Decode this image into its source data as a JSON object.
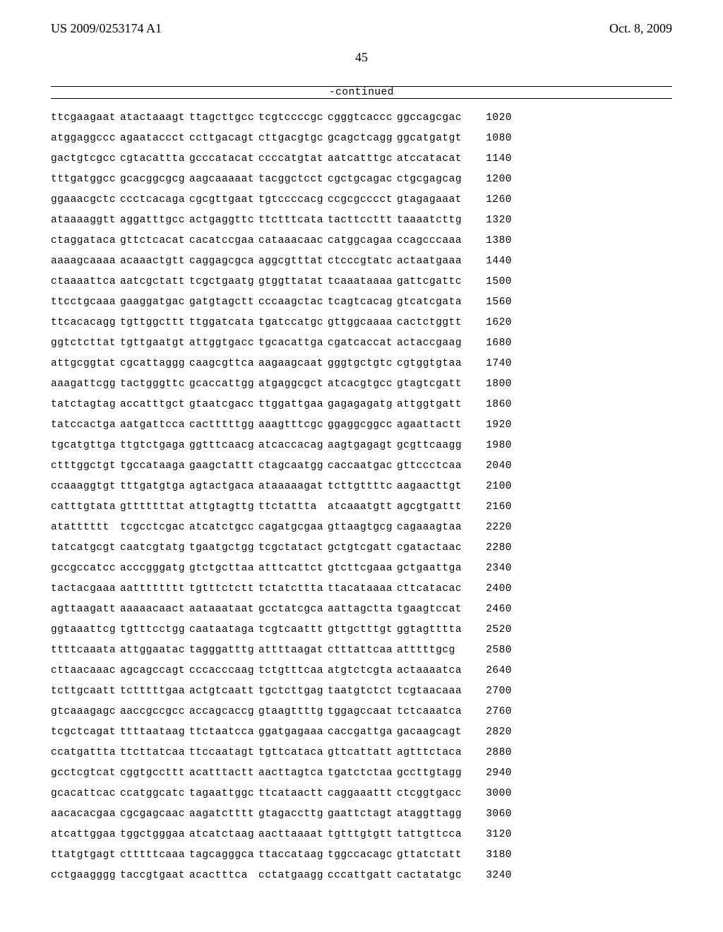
{
  "header": {
    "left": "US 2009/0253174 A1",
    "right": "Oct. 8, 2009"
  },
  "page_number": "45",
  "continued_label": "-continued",
  "sequence": {
    "rows": [
      {
        "groups": [
          "ttcgaagaat",
          "atactaaagt",
          "ttagcttgcc",
          "tcgtccccgc",
          "cgggtcaccc",
          "ggccagcgac"
        ],
        "pos": "1020"
      },
      {
        "groups": [
          "atggaggccc",
          "agaataccct",
          "ccttgacagt",
          "cttgacgtgc",
          "gcagctcagg",
          "ggcatgatgt"
        ],
        "pos": "1080"
      },
      {
        "groups": [
          "gactgtcgcc",
          "cgtacattta",
          "gcccatacat",
          "ccccatgtat",
          "aatcatttgc",
          "atccatacat"
        ],
        "pos": "1140"
      },
      {
        "groups": [
          "tttgatggcc",
          "gcacggcgcg",
          "aagcaaaaat",
          "tacggctcct",
          "cgctgcagac",
          "ctgcgagcag"
        ],
        "pos": "1200"
      },
      {
        "groups": [
          "ggaaacgctc",
          "ccctcacaga",
          "cgcgttgaat",
          "tgtccccacg",
          "ccgcgcccct",
          "gtagagaaat"
        ],
        "pos": "1260"
      },
      {
        "groups": [
          "ataaaaggtt",
          "aggatttgcc",
          "actgaggttc",
          "ttctttcata",
          "tacttccttt",
          "taaaatcttg"
        ],
        "pos": "1320"
      },
      {
        "groups": [
          "ctaggataca",
          "gttctcacat",
          "cacatccgaa",
          "cataaacaac",
          "catggcagaa",
          "ccagcccaaa"
        ],
        "pos": "1380"
      },
      {
        "groups": [
          "aaaagcaaaa",
          "acaaactgtt",
          "caggagcgca",
          "aggcgtttat",
          "ctcccgtatc",
          "actaatgaaa"
        ],
        "pos": "1440"
      },
      {
        "groups": [
          "ctaaaattca",
          "aatcgctatt",
          "tcgctgaatg",
          "gtggttatat",
          "tcaaataaaa",
          "gattcgattc"
        ],
        "pos": "1500"
      },
      {
        "groups": [
          "ttcctgcaaa",
          "gaaggatgac",
          "gatgtagctt",
          "cccaagctac",
          "tcagtcacag",
          "gtcatcgata"
        ],
        "pos": "1560"
      },
      {
        "groups": [
          "ttcacacagg",
          "tgttggcttt",
          "ttggatcata",
          "tgatccatgc",
          "gttggcaaaa",
          "cactctggtt"
        ],
        "pos": "1620"
      },
      {
        "groups": [
          "ggtctcttat",
          "tgttgaatgt",
          "attggtgacc",
          "tgcacattga",
          "cgatcaccat",
          "actaccgaag"
        ],
        "pos": "1680"
      },
      {
        "groups": [
          "attgcggtat",
          "cgcattaggg",
          "caagcgttca",
          "aagaagcaat",
          "gggtgctgtc",
          "cgtggtgtaa"
        ],
        "pos": "1740"
      },
      {
        "groups": [
          "aaagattcgg",
          "tactgggttc",
          "gcaccattgg",
          "atgaggcgct",
          "atcacgtgcc",
          "gtagtcgatt"
        ],
        "pos": "1800"
      },
      {
        "groups": [
          "tatctagtag",
          "accatttgct",
          "gtaatcgacc",
          "ttggattgaa",
          "gagagagatg",
          "attggtgatt"
        ],
        "pos": "1860"
      },
      {
        "groups": [
          "tatccactga",
          "aatgattcca",
          "cactttttgg",
          "aaagtttcgc",
          "ggaggcggcc",
          "agaattactt"
        ],
        "pos": "1920"
      },
      {
        "groups": [
          "tgcatgttga",
          "ttgtctgaga",
          "ggtttcaacg",
          "atcaccacag",
          "aagtgagagt",
          "gcgttcaagg"
        ],
        "pos": "1980"
      },
      {
        "groups": [
          "ctttggctgt",
          "tgccataaga",
          "gaagctattt",
          "ctagcaatgg",
          "caccaatgac",
          "gttccctcaa"
        ],
        "pos": "2040"
      },
      {
        "groups": [
          "ccaaaggtgt",
          "tttgatgtga",
          "agtactgaca",
          "ataaaaagat",
          "tcttgttttc",
          "aagaacttgt"
        ],
        "pos": "2100"
      },
      {
        "groups": [
          "catttgtata",
          "gtttttttat",
          "attgtagttg",
          "ttctattta",
          "atcaaatgtt",
          "agcgtgattt"
        ],
        "pos": "2160"
      },
      {
        "groups": [
          "atatttttt",
          "tcgcctcgac",
          "atcatctgcc",
          "cagatgcgaa",
          "gttaagtgcg",
          "cagaaagtaa"
        ],
        "pos": "2220"
      },
      {
        "groups": [
          "tatcatgcgt",
          "caatcgtatg",
          "tgaatgctgg",
          "tcgctatact",
          "gctgtcgatt",
          "cgatactaac"
        ],
        "pos": "2280"
      },
      {
        "groups": [
          "gccgccatcc",
          "acccgggatg",
          "gtctgcttaa",
          "atttcattct",
          "gtcttcgaaa",
          "gctgaattga"
        ],
        "pos": "2340"
      },
      {
        "groups": [
          "tactacgaaa",
          "aatttttttt",
          "tgtttctctt",
          "tctatcttta",
          "ttacataaaa",
          "cttcatacac"
        ],
        "pos": "2400"
      },
      {
        "groups": [
          "agttaagatt",
          "aaaaacaact",
          "aataaataat",
          "gcctatcgca",
          "aattagctta",
          "tgaagtccat"
        ],
        "pos": "2460"
      },
      {
        "groups": [
          "ggtaaattcg",
          "tgtttcctgg",
          "caataataga",
          "tcgtcaattt",
          "gttgctttgt",
          "ggtagtttta"
        ],
        "pos": "2520"
      },
      {
        "groups": [
          "ttttcaaata",
          "attggaatac",
          "tagggatttg",
          "attttaagat",
          "ctttattcaa",
          "atttttgcg"
        ],
        "pos": "2580"
      },
      {
        "groups": [
          "cttaacaaac",
          "agcagccagt",
          "cccacccaag",
          "tctgtttcaa",
          "atgtctcgta",
          "actaaaatca"
        ],
        "pos": "2640"
      },
      {
        "groups": [
          "tcttgcaatt",
          "tctttttgaa",
          "actgtcaatt",
          "tgctcttgag",
          "taatgtctct",
          "tcgtaacaaa"
        ],
        "pos": "2700"
      },
      {
        "groups": [
          "gtcaaagagc",
          "aaccgccgcc",
          "accagcaccg",
          "gtaagttttg",
          "tggagccaat",
          "tctcaaatca"
        ],
        "pos": "2760"
      },
      {
        "groups": [
          "tcgctcagat",
          "ttttaataag",
          "ttctaatcca",
          "ggatgagaaa",
          "caccgattga",
          "gacaagcagt"
        ],
        "pos": "2820"
      },
      {
        "groups": [
          "ccatgattta",
          "ttcttatcaa",
          "ttccaatagt",
          "tgttcataca",
          "gttcattatt",
          "agtttctaca"
        ],
        "pos": "2880"
      },
      {
        "groups": [
          "gcctcgtcat",
          "cggtgccttt",
          "acatttactt",
          "aacttagtca",
          "tgatctctaa",
          "gccttgtagg"
        ],
        "pos": "2940"
      },
      {
        "groups": [
          "gcacattcac",
          "ccatggcatc",
          "tagaattggc",
          "ttcataactt",
          "caggaaattt",
          "ctcggtgacc"
        ],
        "pos": "3000"
      },
      {
        "groups": [
          "aacacacgaa",
          "cgcgagcaac",
          "aagatctttt",
          "gtagaccttg",
          "gaattctagt",
          "ataggttagg"
        ],
        "pos": "3060"
      },
      {
        "groups": [
          "atcattggaa",
          "tggctgggaa",
          "atcatctaag",
          "aacttaaaat",
          "tgtttgtgtt",
          "tattgttcca"
        ],
        "pos": "3120"
      },
      {
        "groups": [
          "ttatgtgagt",
          "ctttttcaaa",
          "tagcagggca",
          "ttaccataag",
          "tggccacagc",
          "gttatctatt"
        ],
        "pos": "3180"
      },
      {
        "groups": [
          "cctgaagggg",
          "taccgtgaat",
          "acactttca",
          "cctatgaagg",
          "cccattgatt",
          "cactatatgc"
        ],
        "pos": "3240"
      }
    ]
  }
}
